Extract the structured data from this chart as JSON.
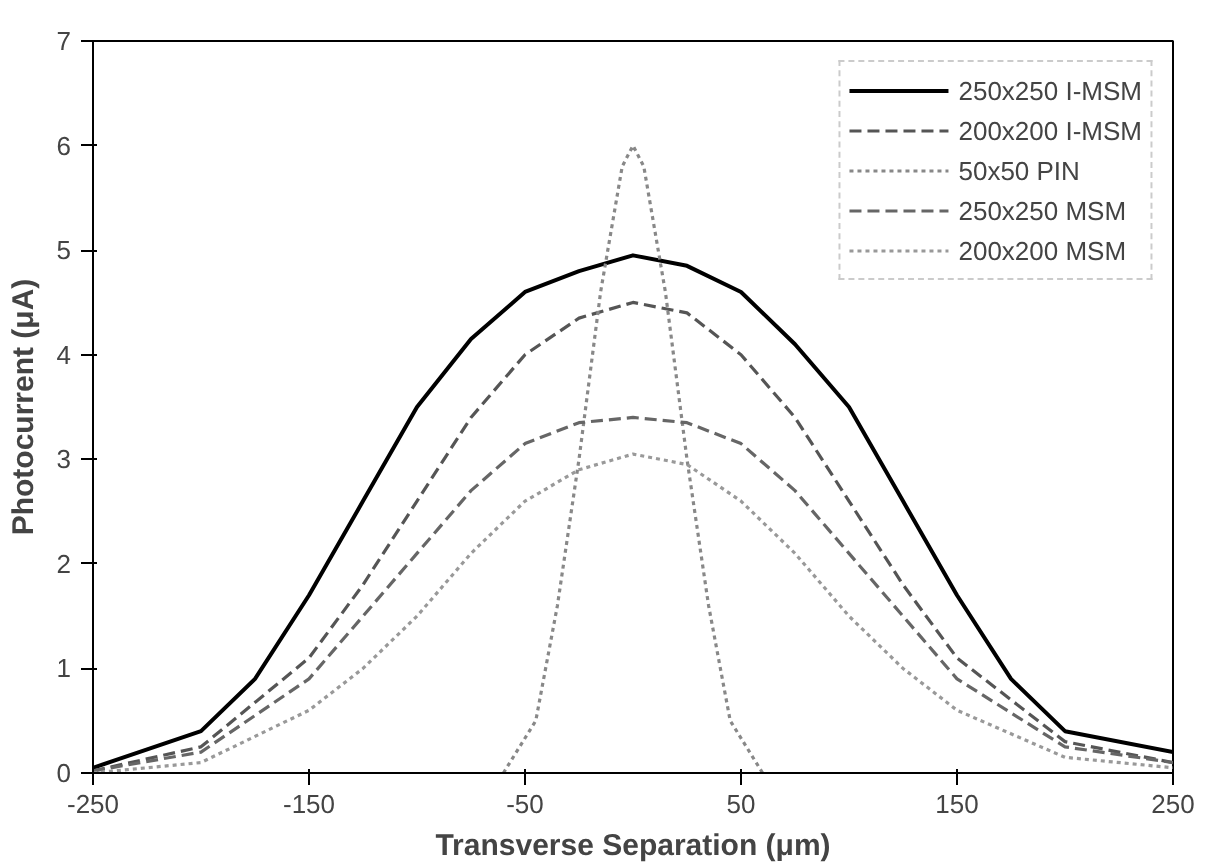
{
  "chart_data": {
    "type": "line",
    "xlabel": "Transverse Separation (μm)",
    "ylabel": "Photocurrent (μA)",
    "xlim": [
      -250,
      250
    ],
    "ylim": [
      0,
      7
    ],
    "xticks": [
      -250,
      -150,
      -50,
      50,
      150,
      250
    ],
    "yticks": [
      0,
      1,
      2,
      3,
      4,
      5,
      6,
      7
    ],
    "grid": false,
    "legend": "top right",
    "marker": "none",
    "series": [
      {
        "name": "250x250 I-MSM",
        "color": "#000000",
        "line_style": "solid",
        "x": [
          -250,
          -200,
          -175,
          -150,
          -125,
          -100,
          -75,
          -50,
          -25,
          0,
          25,
          50,
          75,
          100,
          125,
          150,
          175,
          200,
          250
        ],
        "values": [
          0.05,
          0.4,
          0.9,
          1.7,
          2.6,
          3.5,
          4.15,
          4.6,
          4.8,
          4.95,
          4.85,
          4.6,
          4.1,
          3.5,
          2.6,
          1.7,
          0.9,
          0.4,
          0.2
        ]
      },
      {
        "name": "200x200 I-MSM",
        "color": "#555555",
        "line_style": "dashed",
        "x": [
          -250,
          -200,
          -150,
          -125,
          -100,
          -75,
          -50,
          -25,
          0,
          25,
          50,
          75,
          100,
          125,
          150,
          200,
          250
        ],
        "values": [
          0.02,
          0.25,
          1.1,
          1.8,
          2.6,
          3.4,
          4.0,
          4.35,
          4.5,
          4.4,
          4.0,
          3.4,
          2.6,
          1.8,
          1.1,
          0.3,
          0.1
        ]
      },
      {
        "name": "50x50 PIN",
        "color": "#888888",
        "line_style": "dotted",
        "x": [
          -60,
          -45,
          -35,
          -25,
          -15,
          -5,
          0,
          5,
          15,
          25,
          35,
          45,
          60
        ],
        "values": [
          0,
          0.5,
          1.6,
          3.0,
          4.6,
          5.8,
          6.0,
          5.8,
          4.6,
          3.0,
          1.6,
          0.5,
          0
        ]
      },
      {
        "name": "250x250 MSM",
        "color": "#666666",
        "line_style": "dashed",
        "x": [
          -250,
          -200,
          -150,
          -125,
          -100,
          -75,
          -50,
          -25,
          0,
          25,
          50,
          75,
          100,
          125,
          150,
          200,
          250
        ],
        "values": [
          0.02,
          0.2,
          0.9,
          1.5,
          2.1,
          2.7,
          3.15,
          3.35,
          3.4,
          3.35,
          3.15,
          2.7,
          2.1,
          1.5,
          0.9,
          0.25,
          0.1
        ]
      },
      {
        "name": "200x200 MSM",
        "color": "#999999",
        "line_style": "dotted",
        "x": [
          -250,
          -200,
          -150,
          -125,
          -100,
          -75,
          -50,
          -25,
          0,
          25,
          50,
          75,
          100,
          125,
          150,
          200,
          250
        ],
        "values": [
          0,
          0.1,
          0.6,
          1.0,
          1.5,
          2.1,
          2.6,
          2.9,
          3.05,
          2.95,
          2.6,
          2.1,
          1.5,
          1.0,
          0.6,
          0.15,
          0.05
        ]
      }
    ]
  }
}
